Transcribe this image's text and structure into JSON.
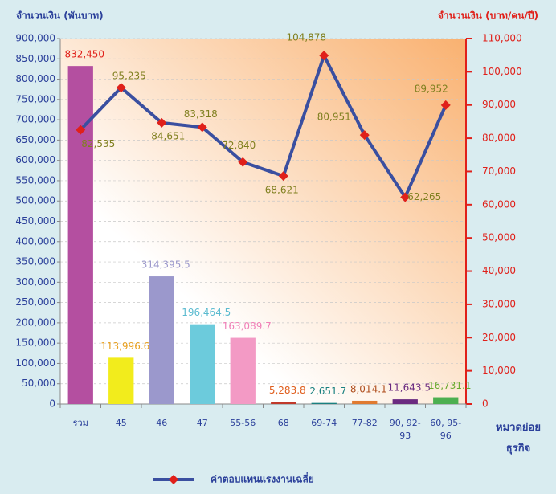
{
  "chart_data": {
    "type": "bar-line",
    "y_label": "จำนวนเงิน (พันบาท)",
    "y2_label": "จำนวนเงิน (บาท/คน/ปี)",
    "x_label": "หมวดย่อย ธุรกิจ",
    "categories": [
      "รวม",
      "45",
      "46",
      "47",
      "55-56",
      "68",
      "69-74",
      "77-82",
      "90, 92-93",
      "60, 95-96"
    ],
    "series": [
      {
        "type": "bar",
        "colors": [
          "#b44fa0",
          "#f2ec1c",
          "#9b98cc",
          "#6ccbdc",
          "#f39ac5",
          "#c0392b",
          "#1a8080",
          "#e07a30",
          "#6a2a80",
          "#4caf50"
        ],
        "label_colors": [
          "#e0201a",
          "#e8a020",
          "#9b98cc",
          "#5bbbd0",
          "#f080b8",
          "#e06020",
          "#1a8080",
          "#b05020",
          "#6a2a80",
          "#6aaa30"
        ],
        "values": [
          832450,
          113996.6,
          314395.5,
          196464.5,
          163089.7,
          5283.8,
          2651.7,
          8014.1,
          11643.5,
          16731.1
        ],
        "value_labels": [
          "832,450",
          "113,996.6",
          "314,395.5",
          "196,464.5",
          "163,089.7",
          "5,283.8",
          "2,651.7",
          "8,014.1",
          "11,643.5",
          "16,731.1"
        ]
      },
      {
        "type": "line",
        "name": "ค่าตอบแทนแรงงานเฉลี่ย",
        "axis": "y2",
        "color": "#3a4fa0",
        "marker_color": "#e0201a",
        "label_color": "#808020",
        "values": [
          82535,
          95235,
          84651,
          83318,
          72840,
          68621,
          104878,
          80951,
          62265,
          89952
        ],
        "value_labels": [
          "82,535",
          "95,235",
          "84,651",
          "83,318",
          "72,840",
          "68,621",
          "104,878",
          "80,951",
          "62,265",
          "89,952"
        ]
      }
    ],
    "ylim": [
      0,
      900000
    ],
    "yticks": [
      {
        "value": 0,
        "label": "0"
      },
      {
        "value": 50000,
        "label": "50,000"
      },
      {
        "value": 100000,
        "label": "100,000"
      },
      {
        "value": 150000,
        "label": "150,000"
      },
      {
        "value": 200000,
        "label": "200,000"
      },
      {
        "value": 250000,
        "label": "250,000"
      },
      {
        "value": 300000,
        "label": "300,000"
      },
      {
        "value": 350000,
        "label": "350,000"
      },
      {
        "value": 400000,
        "label": "400,000"
      },
      {
        "value": 450000,
        "label": "450,000"
      },
      {
        "value": 500000,
        "label": "500,000"
      },
      {
        "value": 550000,
        "label": "550,000"
      },
      {
        "value": 600000,
        "label": "600,000"
      },
      {
        "value": 650000,
        "label": "650,000"
      },
      {
        "value": 700000,
        "label": "700,000"
      },
      {
        "value": 750000,
        "label": "750,000"
      },
      {
        "value": 800000,
        "label": "800,000"
      },
      {
        "value": 850000,
        "label": "850,000"
      },
      {
        "value": 900000,
        "label": "900,000"
      }
    ],
    "y2lim": [
      0,
      110000
    ],
    "y2ticks": [
      {
        "value": 0,
        "label": "0"
      },
      {
        "value": 10000,
        "label": "10,000"
      },
      {
        "value": 20000,
        "label": "20,000"
      },
      {
        "value": 30000,
        "label": "30,000"
      },
      {
        "value": 40000,
        "label": "40,000"
      },
      {
        "value": 50000,
        "label": "50,000"
      },
      {
        "value": 60000,
        "label": "60,000"
      },
      {
        "value": 70000,
        "label": "70,000"
      },
      {
        "value": 80000,
        "label": "80,000"
      },
      {
        "value": 90000,
        "label": "90,000"
      },
      {
        "value": 100000,
        "label": "100,000"
      },
      {
        "value": 110000,
        "label": "110,000"
      }
    ],
    "grid": true
  }
}
